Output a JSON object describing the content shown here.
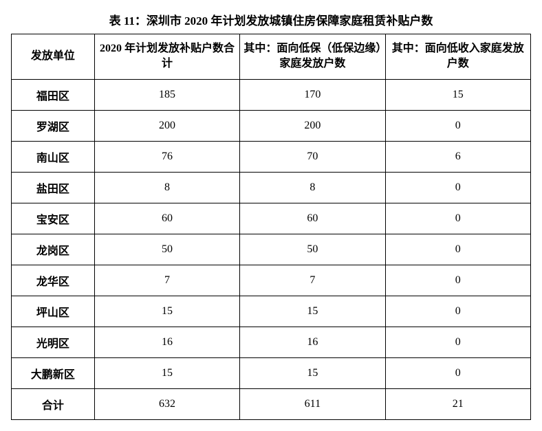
{
  "title": "表 11：深圳市 2020 年计划发放城镇住房保障家庭租赁补贴户数",
  "columns": [
    "发放单位",
    "2020 年计划发放补贴户数合计",
    "其中：面向低保（低保边缘）家庭发放户数",
    "其中：面向低收入家庭发放户数"
  ],
  "rows": [
    {
      "unit": "福田区",
      "total": "185",
      "dibao": "170",
      "dishouru": "15"
    },
    {
      "unit": "罗湖区",
      "total": "200",
      "dibao": "200",
      "dishouru": "0"
    },
    {
      "unit": "南山区",
      "total": "76",
      "dibao": "70",
      "dishouru": "6"
    },
    {
      "unit": "盐田区",
      "total": "8",
      "dibao": "8",
      "dishouru": "0"
    },
    {
      "unit": "宝安区",
      "total": "60",
      "dibao": "60",
      "dishouru": "0"
    },
    {
      "unit": "龙岗区",
      "total": "50",
      "dibao": "50",
      "dishouru": "0"
    },
    {
      "unit": "龙华区",
      "total": "7",
      "dibao": "7",
      "dishouru": "0"
    },
    {
      "unit": "坪山区",
      "total": "15",
      "dibao": "15",
      "dishouru": "0"
    },
    {
      "unit": "光明区",
      "total": "16",
      "dibao": "16",
      "dishouru": "0"
    },
    {
      "unit": "大鹏新区",
      "total": "15",
      "dibao": "15",
      "dishouru": "0"
    },
    {
      "unit": "合计",
      "total": "632",
      "dibao": "611",
      "dishouru": "21"
    }
  ],
  "style": {
    "type": "table",
    "border_color": "#000000",
    "background_color": "#ffffff",
    "text_color": "#000000",
    "title_fontsize": 17,
    "cell_fontsize": 16,
    "column_widths_pct": [
      16,
      28,
      28,
      28
    ],
    "font_family": "SimSun"
  }
}
